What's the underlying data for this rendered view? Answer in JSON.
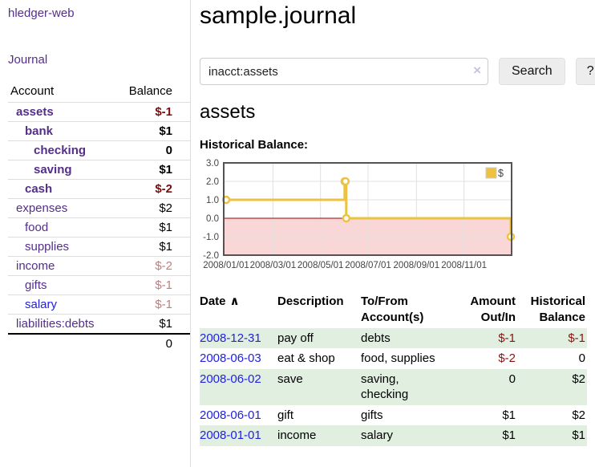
{
  "app": {
    "title": "hledger-web"
  },
  "colors": {
    "accent_purple": "#552E8B",
    "link_blue": "#2222dd",
    "negative_strong": "#7d0c0c",
    "negative_soft": "#bd7e7e",
    "register_negative": "#8b1212",
    "row_stripe_green": "#e1efe1",
    "chart_gold": "#EDC240"
  },
  "icons": {
    "sort_ascending": "∧",
    "clear_search": "×"
  },
  "sidebar": {
    "journal_label": "Journal",
    "accounts": {
      "header_account": "Account",
      "header_balance": "Balance",
      "rows": [
        {
          "name": "assets",
          "balance": "$-1",
          "depth": 1,
          "bold": true,
          "name_color": "purple",
          "balance_style": "neg-strong"
        },
        {
          "name": "bank",
          "balance": "$1",
          "depth": 2,
          "bold": true,
          "name_color": "purple",
          "balance_style": "plain"
        },
        {
          "name": "checking",
          "balance": "0",
          "depth": 3,
          "bold": true,
          "name_color": "purple",
          "balance_style": "plain"
        },
        {
          "name": "saving",
          "balance": "$1",
          "depth": 3,
          "bold": true,
          "name_color": "purple",
          "balance_style": "plain"
        },
        {
          "name": "cash",
          "balance": "$-2",
          "depth": 2,
          "bold": true,
          "name_color": "purple",
          "balance_style": "neg-strong"
        },
        {
          "name": "expenses",
          "balance": "$2",
          "depth": 1,
          "bold": false,
          "name_color": "purple",
          "balance_style": "plain"
        },
        {
          "name": "food",
          "balance": "$1",
          "depth": 2,
          "bold": false,
          "name_color": "purple",
          "balance_style": "plain"
        },
        {
          "name": "supplies",
          "balance": "$1",
          "depth": 2,
          "bold": false,
          "name_color": "purple",
          "balance_style": "plain"
        },
        {
          "name": "income",
          "balance": "$-2",
          "depth": 1,
          "bold": false,
          "name_color": "purple",
          "balance_style": "neg-soft"
        },
        {
          "name": "gifts",
          "balance": "$-1",
          "depth": 2,
          "bold": false,
          "name_color": "purple",
          "balance_style": "neg-soft"
        },
        {
          "name": "salary",
          "balance": "$-1",
          "depth": 2,
          "bold": false,
          "name_color": "blue",
          "balance_style": "neg-soft"
        },
        {
          "name": "liabilities:debts",
          "balance": "$1",
          "depth": 1,
          "bold": false,
          "name_color": "purple",
          "balance_style": "plain"
        }
      ],
      "total": "0"
    }
  },
  "main": {
    "title": "sample.journal",
    "search": {
      "value": "inacct:assets",
      "button_label": "Search",
      "help_label": "?"
    },
    "account_heading": "assets",
    "chart_title": "Historical Balance:",
    "register": {
      "headers": {
        "date": "Date",
        "description": "Description",
        "accounts_line1": "To/From",
        "accounts_line2": "Account(s)",
        "amount_line1": "Amount",
        "amount_line2": "Out/In",
        "balance_line1": "Historical",
        "balance_line2": "Balance"
      },
      "rows": [
        {
          "date": "2008-12-31",
          "description": "pay off",
          "accounts": "debts",
          "amount": "$-1",
          "amount_negative": true,
          "balance": "$-1",
          "balance_negative": true
        },
        {
          "date": "2008-06-03",
          "description": "eat & shop",
          "accounts": "food, supplies",
          "amount": "$-2",
          "amount_negative": true,
          "balance": "0",
          "balance_negative": false
        },
        {
          "date": "2008-06-02",
          "description": "save",
          "accounts": "saving, checking",
          "amount": "0",
          "amount_negative": false,
          "balance": "$2",
          "balance_negative": false
        },
        {
          "date": "2008-06-01",
          "description": "gift",
          "accounts": "gifts",
          "amount": "$1",
          "amount_negative": false,
          "balance": "$2",
          "balance_negative": false
        },
        {
          "date": "2008-01-01",
          "description": "income",
          "accounts": "salary",
          "amount": "$1",
          "amount_negative": false,
          "balance": "$1",
          "balance_negative": false
        }
      ]
    }
  },
  "chart_data": {
    "type": "line",
    "title": "Historical Balance",
    "step": true,
    "series": [
      {
        "name": "$",
        "color": "#EDC240",
        "points": [
          {
            "date": "2008-01-01",
            "value": 1
          },
          {
            "date": "2008-06-01",
            "value": 2
          },
          {
            "date": "2008-06-02",
            "value": 2
          },
          {
            "date": "2008-06-03",
            "value": 0
          },
          {
            "date": "2008-12-31",
            "value": -1
          }
        ]
      }
    ],
    "x_axis": {
      "start": "2008-01-01",
      "end": "2008-12-31",
      "ticks": [
        {
          "date": "2008-01-01",
          "label": "2008/01/01"
        },
        {
          "date": "2008-03-01",
          "label": "2008/03/01"
        },
        {
          "date": "2008-05-01",
          "label": "2008/05/01"
        },
        {
          "date": "2008-07-01",
          "label": "2008/07/01"
        },
        {
          "date": "2008-09-01",
          "label": "2008/09/01"
        },
        {
          "date": "2008-11-01",
          "label": "2008/11/01"
        }
      ]
    },
    "y_axis": {
      "min": -2,
      "max": 3,
      "ticks": [
        3,
        2,
        1,
        0,
        -1,
        -2
      ]
    },
    "legend": {
      "position": "top-right",
      "entries": [
        "$"
      ]
    },
    "grid": true,
    "grid_color": "#e0e0e0",
    "zero_line_color": "#990000",
    "negative_region_color": "#f9d7d7",
    "border_color": "#545454",
    "tick_text_color": "#444444"
  }
}
